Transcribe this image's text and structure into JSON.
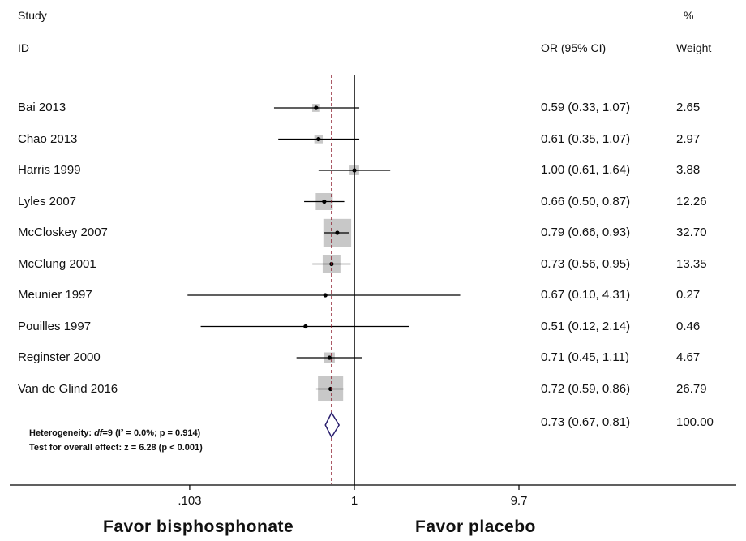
{
  "header": {
    "study_line1": "Study",
    "study_line2": "ID",
    "or_header": "OR (95% CI)",
    "weight_line1": "%",
    "weight_line2": "Weight"
  },
  "chart_data": {
    "type": "forest",
    "x_scale": "log",
    "ticks": [
      ".103",
      "1",
      "9.7"
    ],
    "tick_values": [
      0.103,
      1,
      9.7
    ],
    "studies": [
      {
        "label": "Bai 2013",
        "or": 0.59,
        "lo": 0.33,
        "hi": 1.07,
        "ci_text": "0.59 (0.33, 1.07)",
        "weight": 2.65,
        "weight_text": "2.65"
      },
      {
        "label": "Chao 2013",
        "or": 0.61,
        "lo": 0.35,
        "hi": 1.07,
        "ci_text": "0.61 (0.35, 1.07)",
        "weight": 2.97,
        "weight_text": "2.97"
      },
      {
        "label": "Harris 1999",
        "or": 1.0,
        "lo": 0.61,
        "hi": 1.64,
        "ci_text": "1.00 (0.61, 1.64)",
        "weight": 3.88,
        "weight_text": "3.88"
      },
      {
        "label": "Lyles 2007",
        "or": 0.66,
        "lo": 0.5,
        "hi": 0.87,
        "ci_text": "0.66 (0.50, 0.87)",
        "weight": 12.26,
        "weight_text": "12.26"
      },
      {
        "label": "McCloskey 2007",
        "or": 0.79,
        "lo": 0.66,
        "hi": 0.93,
        "ci_text": "0.79 (0.66, 0.93)",
        "weight": 32.7,
        "weight_text": "32.70"
      },
      {
        "label": "McClung 2001",
        "or": 0.73,
        "lo": 0.56,
        "hi": 0.95,
        "ci_text": "0.73 (0.56, 0.95)",
        "weight": 13.35,
        "weight_text": "13.35"
      },
      {
        "label": "Meunier 1997",
        "or": 0.67,
        "lo": 0.1,
        "hi": 4.31,
        "ci_text": "0.67 (0.10, 4.31)",
        "weight": 0.27,
        "weight_text": "0.27"
      },
      {
        "label": "Pouilles 1997",
        "or": 0.51,
        "lo": 0.12,
        "hi": 2.14,
        "ci_text": "0.51 (0.12, 2.14)",
        "weight": 0.46,
        "weight_text": "0.46"
      },
      {
        "label": "Reginster 2000",
        "or": 0.71,
        "lo": 0.45,
        "hi": 1.11,
        "ci_text": "0.71 (0.45, 1.11)",
        "weight": 4.67,
        "weight_text": "4.67"
      },
      {
        "label": "Van de Glind 2016",
        "or": 0.72,
        "lo": 0.59,
        "hi": 0.86,
        "ci_text": "0.72 (0.59, 0.86)",
        "weight": 26.79,
        "weight_text": "26.79"
      }
    ],
    "overall": {
      "or": 0.73,
      "lo": 0.67,
      "hi": 0.81,
      "ci_text": "0.73 (0.67, 0.81)",
      "weight_text": "100.00"
    },
    "heterogeneity_prefix": "Heterogeneity: ",
    "heterogeneity_df": "df",
    "heterogeneity_rest": "=9 (I² = 0.0%; p = 0.914)",
    "overall_effect": "Test for overall effect: z = 6.28 (p < 0.001)",
    "favor_left": "Favor bisphosphonate",
    "favor_right": "Favor placebo",
    "colors": {
      "box": "#c8c8c8",
      "line": "#000000",
      "diamond": "#2a1f6e",
      "dashed": "#8b1a2b"
    }
  }
}
